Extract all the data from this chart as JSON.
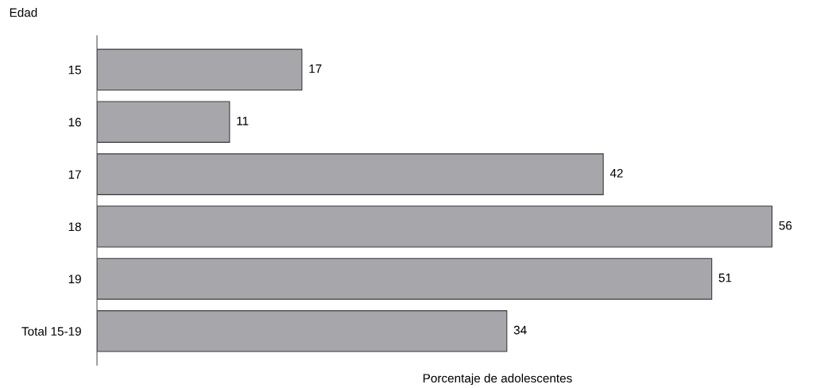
{
  "chart_data": {
    "type": "bar",
    "orientation": "horizontal",
    "categories": [
      "15",
      "16",
      "17",
      "18",
      "19",
      "Total 15-19"
    ],
    "values": [
      17,
      11,
      42,
      56,
      51,
      34
    ],
    "color": "#a7a7ab",
    "data_labels": true,
    "xlabel": "Porcentaje de adolescentes",
    "ylabel": "Edad",
    "grid": false,
    "legend": false
  }
}
